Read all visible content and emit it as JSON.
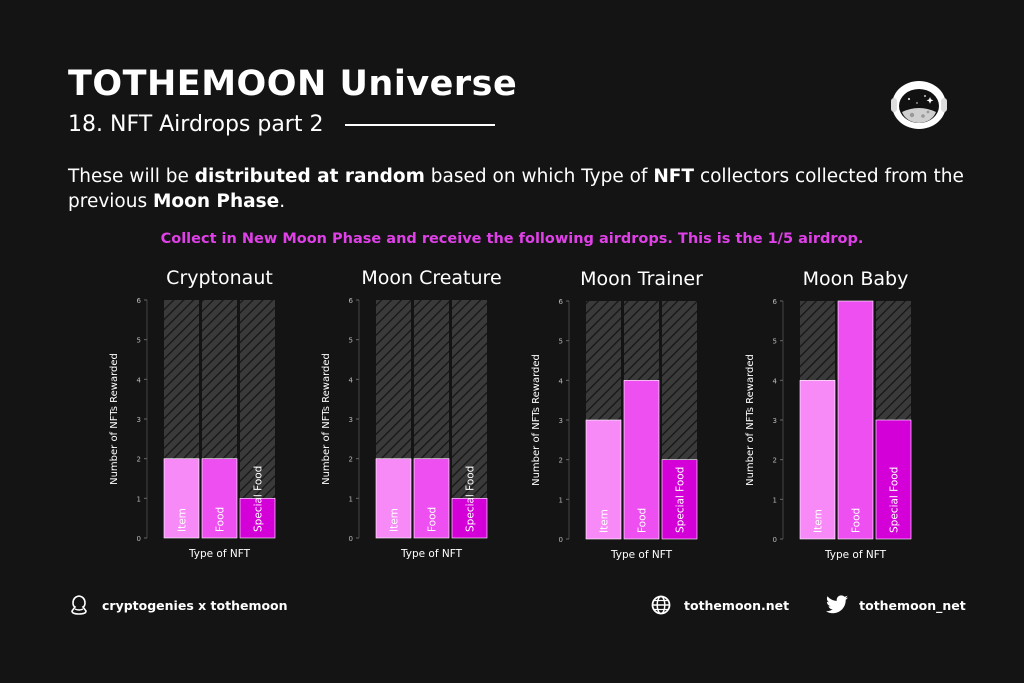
{
  "header": {
    "title": "TOTHEMOON Universe",
    "subtitle": "18. NFT Airdrops part 2"
  },
  "description": {
    "p1": "These will be ",
    "b1": "distributed at random",
    "p2": " based on which Type of ",
    "b2": "NFT",
    "p3": " collectors collected from the previous ",
    "b3": "Moon Phase",
    "p4": "."
  },
  "highlight": "Collect in New Moon Phase and receive the following airdrops. This is the 1/5 airdrop.",
  "colors": {
    "background": "#141414",
    "highlight": "#e040e8",
    "item": "#f78af7",
    "food": "#ee4ff0",
    "special_food": "#d400d8",
    "hatch_bg": "#3a3a3a",
    "hatch_line": "#161616"
  },
  "chart_data": [
    {
      "type": "bar",
      "title": "Cryptonaut",
      "categories": [
        "Item",
        "Food",
        "Special Food"
      ],
      "values": [
        2,
        2,
        1
      ],
      "max_values": [
        6,
        6,
        6
      ],
      "ylim": [
        0,
        6
      ],
      "yticks": [
        0,
        1,
        2,
        3,
        4,
        5,
        6
      ],
      "xlabel": "Type of NFT",
      "ylabel": "Number of NFTs Rewarded"
    },
    {
      "type": "bar",
      "title": "Moon Creature",
      "categories": [
        "Item",
        "Food",
        "Special Food"
      ],
      "values": [
        2,
        2,
        1
      ],
      "max_values": [
        6,
        6,
        6
      ],
      "ylim": [
        0,
        6
      ],
      "yticks": [
        0,
        1,
        2,
        3,
        4,
        5,
        6
      ],
      "xlabel": "Type of NFT",
      "ylabel": "Number of NFTs Rewarded"
    },
    {
      "type": "bar",
      "title": "Moon Trainer",
      "categories": [
        "Item",
        "Food",
        "Special Food"
      ],
      "values": [
        3,
        4,
        2
      ],
      "max_values": [
        6,
        6,
        6
      ],
      "ylim": [
        0,
        6
      ],
      "yticks": [
        0,
        1,
        2,
        3,
        4,
        5,
        6
      ],
      "xlabel": "Type of NFT",
      "ylabel": "Number of NFTs Rewarded"
    },
    {
      "type": "bar",
      "title": "Moon Baby",
      "categories": [
        "Item",
        "Food",
        "Special Food"
      ],
      "values": [
        4,
        6,
        3
      ],
      "max_values": [
        6,
        6,
        6
      ],
      "ylim": [
        0,
        6
      ],
      "yticks": [
        0,
        1,
        2,
        3,
        4,
        5,
        6
      ],
      "xlabel": "Type of NFT",
      "ylabel": "Number of NFTs Rewarded"
    }
  ],
  "footer": {
    "brand": "cryptogenies x tothemoon",
    "website": "tothemoon.net",
    "twitter": "tothemoon_net",
    "brand_icon": "cryptogenies-logo-icon",
    "website_icon": "globe-icon",
    "twitter_icon": "twitter-bird-icon"
  }
}
